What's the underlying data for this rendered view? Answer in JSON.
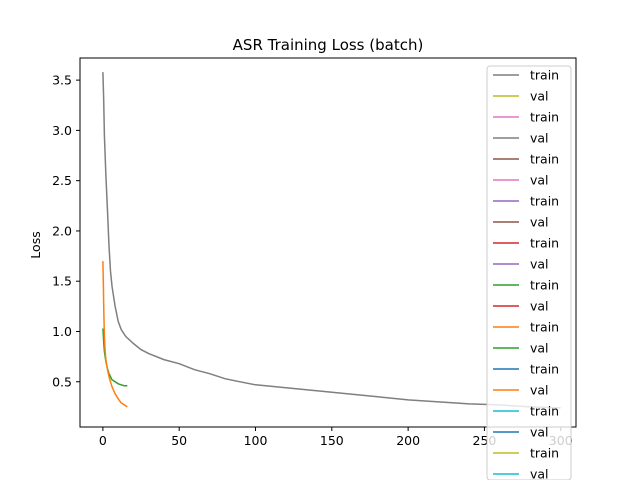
{
  "chart_data": {
    "type": "line",
    "title": "ASR Training Loss (batch)",
    "xlabel": "",
    "ylabel": "Loss",
    "xlim": [
      -15,
      310
    ],
    "ylim": [
      0.05,
      3.72
    ],
    "xticks": [
      0,
      50,
      100,
      150,
      200,
      250,
      300
    ],
    "yticks": [
      0.5,
      1.0,
      1.5,
      2.0,
      2.5,
      3.0,
      3.5
    ],
    "xtick_labels": [
      "0",
      "50",
      "100",
      "150",
      "200",
      "250",
      "300"
    ],
    "ytick_labels": [
      "0.5",
      "1.0",
      "1.5",
      "2.0",
      "2.5",
      "3.0",
      "3.5"
    ],
    "grid": false,
    "legend_position": "top-right",
    "series": [
      {
        "name": "train",
        "color": "#7f7f7f",
        "x": [
          0,
          0.5,
          1,
          2,
          3,
          4,
          5,
          6,
          8,
          10,
          12,
          15,
          20,
          25,
          30,
          40,
          50,
          60,
          70,
          80,
          90,
          100,
          120,
          140,
          160,
          180,
          200,
          220,
          240,
          260,
          280,
          300
        ],
        "y": [
          3.58,
          3.3,
          2.95,
          2.55,
          2.2,
          1.85,
          1.6,
          1.45,
          1.25,
          1.1,
          1.02,
          0.95,
          0.88,
          0.82,
          0.78,
          0.72,
          0.68,
          0.62,
          0.58,
          0.53,
          0.5,
          0.47,
          0.44,
          0.41,
          0.38,
          0.35,
          0.32,
          0.3,
          0.28,
          0.27,
          0.25,
          0.24
        ]
      },
      {
        "name": "val",
        "color": "#bcbd22",
        "x": [],
        "y": []
      },
      {
        "name": "train",
        "color": "#e377c2",
        "x": [],
        "y": []
      },
      {
        "name": "val",
        "color": "#7f7f7f",
        "x": [],
        "y": []
      },
      {
        "name": "train",
        "color": "#8c564b",
        "x": [],
        "y": []
      },
      {
        "name": "val",
        "color": "#e377c2",
        "x": [],
        "y": []
      },
      {
        "name": "train",
        "color": "#9467bd",
        "x": [],
        "y": []
      },
      {
        "name": "val",
        "color": "#8c564b",
        "x": [],
        "y": []
      },
      {
        "name": "train",
        "color": "#d62728",
        "x": [],
        "y": []
      },
      {
        "name": "val",
        "color": "#9467bd",
        "x": [],
        "y": []
      },
      {
        "name": "train",
        "color": "#2ca02c",
        "x": [
          0,
          0.5,
          1,
          2,
          3,
          4,
          5,
          6,
          8,
          10,
          12,
          14,
          16
        ],
        "y": [
          1.03,
          0.9,
          0.8,
          0.7,
          0.63,
          0.58,
          0.55,
          0.52,
          0.5,
          0.48,
          0.47,
          0.46,
          0.46
        ]
      },
      {
        "name": "val",
        "color": "#d62728",
        "x": [],
        "y": []
      },
      {
        "name": "train",
        "color": "#ff7f0e",
        "x": [
          0,
          0.3,
          0.6,
          1,
          1.5,
          2,
          3,
          4,
          5,
          6,
          8,
          10,
          12,
          14,
          16
        ],
        "y": [
          1.7,
          1.45,
          1.2,
          0.95,
          0.8,
          0.72,
          0.62,
          0.55,
          0.5,
          0.45,
          0.38,
          0.33,
          0.29,
          0.27,
          0.25
        ]
      },
      {
        "name": "val",
        "color": "#2ca02c",
        "x": [],
        "y": []
      },
      {
        "name": "train",
        "color": "#1f77b4",
        "x": [],
        "y": []
      },
      {
        "name": "val",
        "color": "#ff7f0e",
        "x": [],
        "y": []
      },
      {
        "name": "train",
        "color": "#17becf",
        "x": [],
        "y": []
      },
      {
        "name": "val",
        "color": "#1f77b4",
        "x": [],
        "y": []
      },
      {
        "name": "train",
        "color": "#bcbd22",
        "x": [],
        "y": []
      },
      {
        "name": "val",
        "color": "#17becf",
        "x": [],
        "y": []
      }
    ]
  }
}
